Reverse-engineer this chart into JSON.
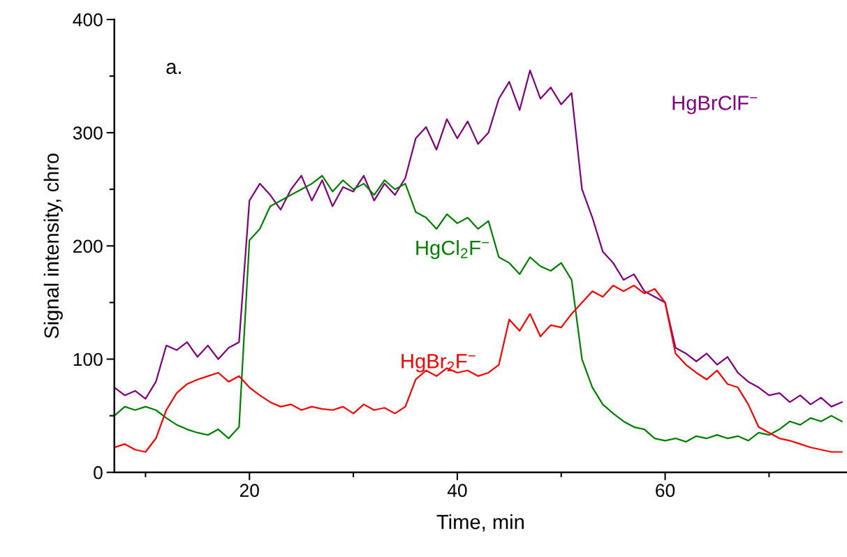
{
  "chart_data": {
    "type": "line",
    "xlabel": "Time, min",
    "ylabel": "Signal intensity, chro",
    "annotations": [
      "a."
    ],
    "x": [
      7,
      8,
      9,
      10,
      11,
      12,
      13,
      14,
      15,
      16,
      17,
      18,
      19,
      20,
      21,
      22,
      23,
      24,
      25,
      26,
      27,
      28,
      29,
      30,
      31,
      32,
      33,
      34,
      35,
      36,
      37,
      38,
      39,
      40,
      41,
      42,
      43,
      44,
      45,
      46,
      47,
      48,
      49,
      50,
      51,
      52,
      53,
      54,
      55,
      56,
      57,
      58,
      59,
      60,
      61,
      62,
      63,
      64,
      65,
      66,
      67,
      68,
      69,
      70,
      71,
      72,
      73,
      74,
      75,
      76,
      77
    ],
    "series": [
      {
        "name": "HgBrClF$^{−}$",
        "color": "#800080",
        "values": [
          75,
          68,
          72,
          65,
          80,
          112,
          108,
          115,
          102,
          112,
          100,
          110,
          115,
          240,
          255,
          245,
          232,
          250,
          262,
          240,
          258,
          235,
          252,
          248,
          262,
          240,
          255,
          245,
          260,
          295,
          305,
          285,
          312,
          295,
          310,
          290,
          300,
          330,
          345,
          320,
          355,
          330,
          340,
          325,
          335,
          250,
          225,
          195,
          185,
          170,
          175,
          160,
          155,
          150,
          110,
          105,
          98,
          105,
          95,
          102,
          88,
          80,
          75,
          68,
          70,
          62,
          68,
          60,
          66,
          58,
          62
        ]
      },
      {
        "name": "HgCl$_{2}$F$^{−}$",
        "color": "#008000",
        "values": [
          50,
          58,
          55,
          58,
          55,
          48,
          42,
          38,
          35,
          33,
          38,
          30,
          40,
          205,
          215,
          235,
          240,
          245,
          250,
          255,
          262,
          248,
          258,
          250,
          255,
          245,
          258,
          250,
          255,
          230,
          225,
          215,
          228,
          220,
          225,
          215,
          222,
          190,
          185,
          175,
          190,
          182,
          178,
          185,
          170,
          100,
          75,
          60,
          52,
          45,
          40,
          38,
          30,
          28,
          30,
          27,
          32,
          30,
          33,
          30,
          32,
          28,
          35,
          33,
          38,
          45,
          42,
          48,
          45,
          50,
          45
        ]
      },
      {
        "name": "HgBr$_{2}$F$^{−}$",
        "color": "#ff0000",
        "values": [
          22,
          25,
          20,
          18,
          30,
          55,
          70,
          78,
          82,
          85,
          88,
          80,
          85,
          75,
          68,
          62,
          58,
          60,
          55,
          58,
          56,
          55,
          58,
          52,
          60,
          55,
          57,
          52,
          58,
          82,
          90,
          85,
          92,
          88,
          90,
          85,
          88,
          95,
          135,
          125,
          140,
          120,
          130,
          128,
          140,
          150,
          160,
          155,
          165,
          160,
          165,
          158,
          162,
          150,
          105,
          95,
          88,
          82,
          90,
          78,
          75,
          60,
          40,
          35,
          30,
          28,
          25,
          22,
          20,
          18,
          18
        ]
      }
    ],
    "xlim": [
      7,
      77.5
    ],
    "xticks": [
      {
        "value": 10,
        "label": null
      },
      20,
      {
        "value": 30,
        "label": null
      },
      40,
      {
        "value": 50,
        "label": null
      },
      60,
      {
        "value": 70,
        "label": null
      }
    ],
    "ylim": [
      0,
      400
    ],
    "yticks": [
      0,
      {
        "value": 50,
        "label": null
      },
      100,
      {
        "value": 150,
        "label": null
      },
      200,
      {
        "value": 250,
        "label": null
      },
      300,
      {
        "value": 350,
        "label": null
      },
      400
    ],
    "grid": false,
    "legend": false,
    "marker": "none",
    "line_style": "solid"
  }
}
